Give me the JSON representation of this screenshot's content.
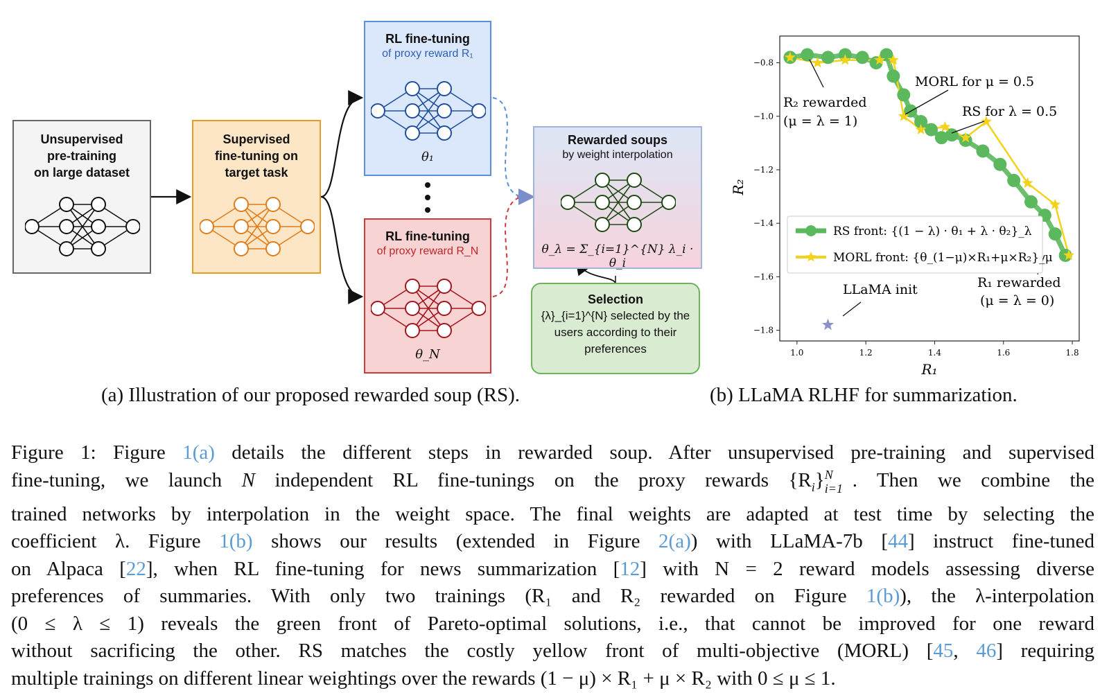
{
  "diagram": {
    "pretrain": {
      "title": "Unsupervised pre-training on large dataset",
      "lines": [
        "Unsupervised",
        "pre-training",
        "on large dataset"
      ]
    },
    "sft": {
      "lines": [
        "Supervised",
        "fine-tuning on",
        "target task"
      ]
    },
    "rl1": {
      "title": "RL fine-tuning",
      "subtitle": "of proxy reward R₁",
      "theta": "θ₁"
    },
    "rln": {
      "title": "RL fine-tuning",
      "subtitle": "of proxy reward R_N",
      "theta": "θ_N"
    },
    "soup": {
      "title": "Rewarded soups",
      "subtitle": "by weight interpolation",
      "formula": "θ_λ = Σ_{i=1}^{N} λ_i · θ_i"
    },
    "selection": {
      "title": "Selection",
      "text_lines": [
        "{λ}_{i=1}^{N} selected by the",
        "users according to their",
        "preferences"
      ]
    },
    "colors": {
      "pretrain": "#f4f4f4",
      "sft": "#fde6c6",
      "rl1": "#dbe8fb",
      "rln": "#f8d3d3",
      "selection": "#d9ecd2"
    }
  },
  "captions": {
    "a": "(a) Illustration of our proposed rewarded soup (RS).",
    "b": "(b) LLaMA RLHF for summarization."
  },
  "chart_data": {
    "type": "scatter",
    "title": "",
    "xlabel": "R₁",
    "ylabel": "R₂",
    "xlim": [
      0.95,
      1.82
    ],
    "ylim": [
      -1.84,
      -0.7
    ],
    "xticks": [
      1.0,
      1.2,
      1.4,
      1.6,
      1.8
    ],
    "xtick_labels": [
      "1.0",
      "1.2",
      "1.4",
      "1.6",
      "1.8"
    ],
    "yticks": [
      -0.8,
      -1.0,
      -1.2,
      -1.4,
      -1.6,
      -1.8
    ],
    "ytick_labels": [
      "−0.8",
      "−1.0",
      "−1.2",
      "−1.4",
      "−1.6",
      "−1.8"
    ],
    "grid": false,
    "legend_position": "center-left",
    "series": [
      {
        "name": "RS front: {(1 − λ) · θ₁ + λ · θ₂}_λ",
        "marker": "circle",
        "color": "#5cb85c",
        "x": [
          0.98,
          1.03,
          1.09,
          1.14,
          1.19,
          1.23,
          1.26,
          1.28,
          1.31,
          1.33,
          1.36,
          1.39,
          1.42,
          1.45,
          1.49,
          1.54,
          1.59,
          1.63,
          1.68,
          1.72,
          1.75,
          1.78
        ],
        "y": [
          -0.78,
          -0.77,
          -0.78,
          -0.77,
          -0.78,
          -0.8,
          -0.77,
          -0.85,
          -0.92,
          -0.98,
          -1.02,
          -1.05,
          -1.08,
          -1.07,
          -1.09,
          -1.13,
          -1.18,
          -1.24,
          -1.32,
          -1.37,
          -1.44,
          -1.52
        ]
      },
      {
        "name": "MORL front: {θ_(1−μ)×R₁+μ×R₂}_μ",
        "marker": "star",
        "color": "#f2d21b",
        "x": [
          0.98,
          1.06,
          1.14,
          1.24,
          1.28,
          1.31,
          1.36,
          1.43,
          1.49,
          1.55,
          1.67,
          1.75,
          1.79
        ],
        "y": [
          -0.78,
          -0.8,
          -0.79,
          -0.79,
          -0.79,
          -1.0,
          -1.05,
          -1.04,
          -1.08,
          -1.02,
          -1.25,
          -1.33,
          -1.52
        ]
      },
      {
        "name": "LLaMA init",
        "marker": "star",
        "color": "#8c92c9",
        "x": [
          1.09
        ],
        "y": [
          -1.78
        ]
      }
    ],
    "annotations": [
      {
        "label": "R₂ rewarded",
        "sub": "(μ = λ = 1)"
      },
      {
        "label": "MORL for μ = 0.5"
      },
      {
        "label": "RS for λ = 0.5"
      },
      {
        "label": "LLaMA init"
      },
      {
        "label": "R₁ rewarded",
        "sub": "(μ = λ = 0)"
      }
    ]
  },
  "figure_caption_lines": [
    "Figure 1: Figure ",
    "1(a)",
    " details the different steps in rewarded soup. After unsupervised pre-training and supervised",
    "fine-tuning, we launch ",
    "N",
    " independent RL fine-tunings on the proxy rewards {R",
    "i",
    "}",
    ". Then we combine the",
    "trained networks by interpolation in the weight space. The final weights are adapted at test time by selecting the",
    "coefficient λ. Figure ",
    "1(b)",
    " shows our results (extended in Figure ",
    "2(a)",
    ") with LLaMA-7b [",
    "44",
    "] instruct fine-tuned",
    "on Alpaca [",
    "22",
    "], when RL fine-tuning for news summarization [",
    "12",
    "] with N = 2 reward models assessing diverse",
    "preferences of summaries. With only two trainings (R₁ and R₂ rewarded on Figure ",
    "1(b)",
    "), the λ-interpolation",
    "(0 ≤ λ ≤ 1) reveals the green front of Pareto-optimal solutions, i.e., that cannot be improved for one reward",
    "without sacrificing the other. RS matches the costly yellow front of multi-objective (MORL) [",
    "45",
    ", ",
    "46",
    "] requiring",
    "multiple trainings on different linear weightings over the rewards (1 − μ) × R₁ + μ × R₂ with 0 ≤ μ ≤ 1.",
    "i=1"
  ]
}
